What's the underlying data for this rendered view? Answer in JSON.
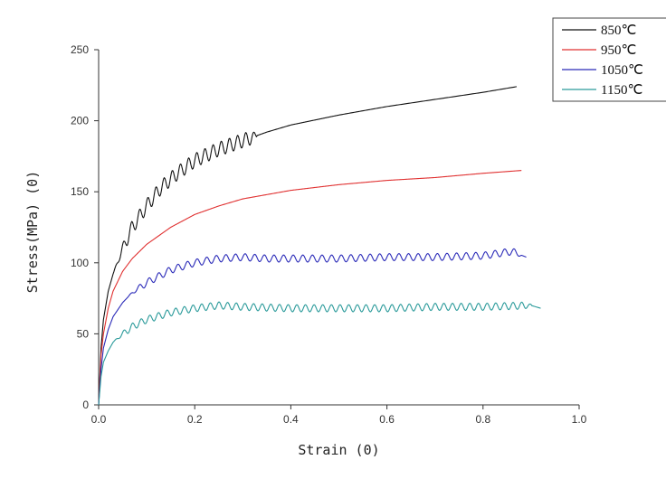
{
  "chart_data": {
    "type": "line",
    "title": "",
    "xlabel": "Strain (0)",
    "ylabel": "Stress(MPa) (0)",
    "xlim": [
      0,
      1.0
    ],
    "ylim": [
      0,
      250
    ],
    "x_ticks": [
      "0.0",
      "0.2",
      "0.4",
      "0.6",
      "0.8",
      "1.0"
    ],
    "y_ticks": [
      "0",
      "50",
      "100",
      "150",
      "200",
      "250"
    ],
    "grid": false,
    "legend_position": "top-right",
    "series": [
      {
        "name": "850℃",
        "color": "#111111",
        "oscillation": {
          "amplitude": 5,
          "period": 0.017,
          "from": 0.03,
          "to": 0.33
        },
        "x": [
          0,
          0.005,
          0.01,
          0.02,
          0.03,
          0.05,
          0.07,
          0.1,
          0.13,
          0.16,
          0.2,
          0.25,
          0.3,
          0.35,
          0.4,
          0.5,
          0.6,
          0.7,
          0.8,
          0.87
        ],
        "y": [
          0,
          40,
          60,
          80,
          92,
          110,
          125,
          140,
          153,
          162,
          172,
          180,
          186,
          192,
          197,
          204,
          210,
          215,
          220,
          224
        ]
      },
      {
        "name": "950℃",
        "color": "#e03030",
        "oscillation": {
          "amplitude": 0,
          "period": 0.02,
          "from": 0,
          "to": 0
        },
        "x": [
          0,
          0.005,
          0.01,
          0.02,
          0.03,
          0.05,
          0.07,
          0.1,
          0.15,
          0.2,
          0.25,
          0.3,
          0.35,
          0.4,
          0.5,
          0.6,
          0.7,
          0.8,
          0.88
        ],
        "y": [
          0,
          35,
          50,
          68,
          80,
          94,
          103,
          113,
          125,
          134,
          140,
          145,
          148,
          151,
          155,
          158,
          160,
          163,
          165
        ]
      },
      {
        "name": "1050℃",
        "color": "#2a2ab8",
        "oscillation": {
          "amplitude": 2.5,
          "period": 0.02,
          "from": 0.06,
          "to": 0.88
        },
        "x": [
          0,
          0.005,
          0.01,
          0.02,
          0.03,
          0.05,
          0.07,
          0.1,
          0.15,
          0.2,
          0.25,
          0.3,
          0.35,
          0.4,
          0.5,
          0.6,
          0.7,
          0.8,
          0.86,
          0.89
        ],
        "y": [
          0,
          25,
          40,
          53,
          62,
          72,
          79,
          86,
          95,
          100,
          103,
          104,
          103,
          103,
          103,
          104,
          104,
          105,
          108,
          104
        ]
      },
      {
        "name": "1150℃",
        "color": "#2a9a9a",
        "oscillation": {
          "amplitude": 2.5,
          "period": 0.018,
          "from": 0.03,
          "to": 0.9
        },
        "x": [
          0,
          0.005,
          0.01,
          0.02,
          0.03,
          0.05,
          0.07,
          0.1,
          0.15,
          0.2,
          0.25,
          0.3,
          0.4,
          0.5,
          0.6,
          0.7,
          0.8,
          0.9,
          0.92
        ],
        "y": [
          0,
          20,
          30,
          38,
          44,
          50,
          55,
          60,
          65,
          68,
          70,
          69,
          68,
          68,
          68,
          69,
          69,
          70,
          68
        ]
      }
    ]
  }
}
